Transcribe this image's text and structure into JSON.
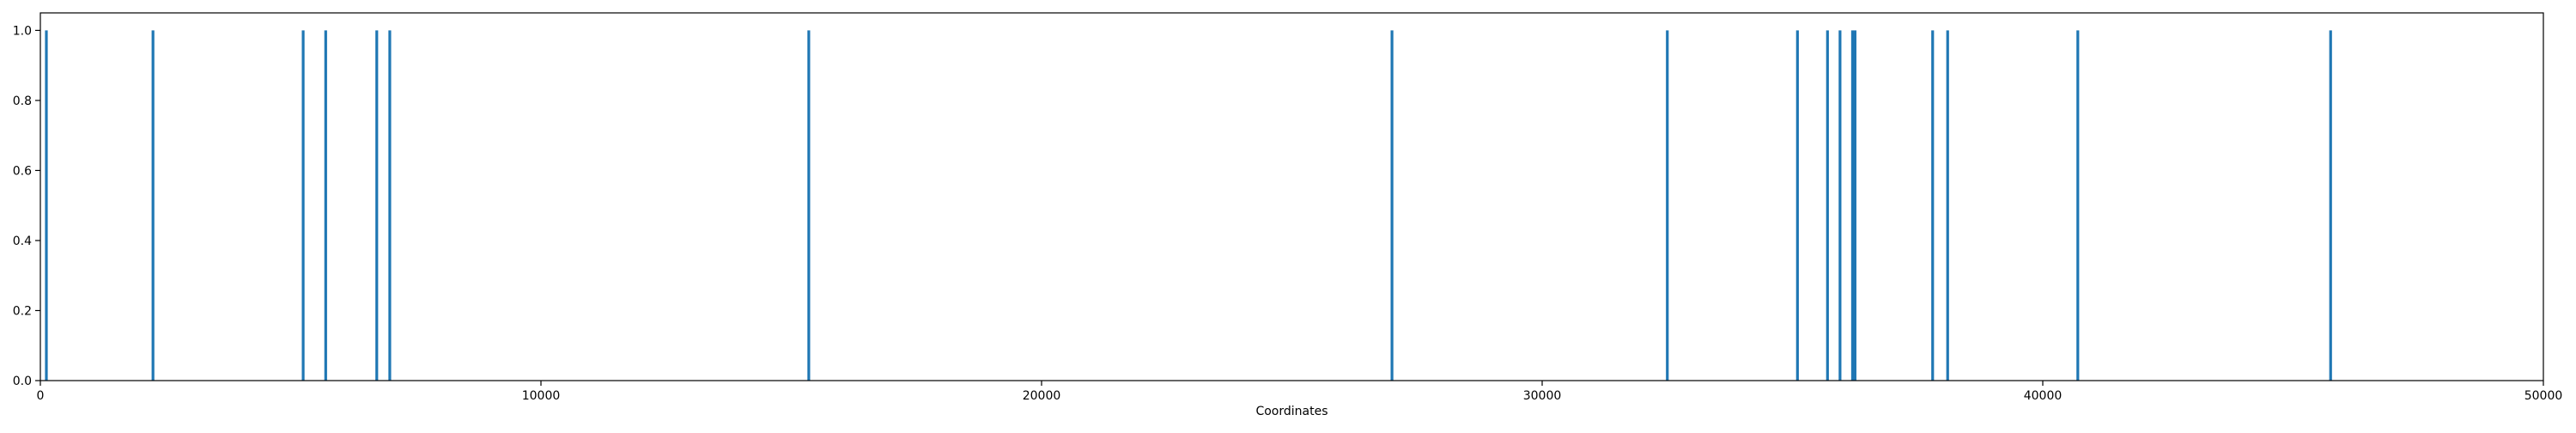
{
  "chart_data": {
    "type": "bar",
    "title": "",
    "xlabel": "Coordinates",
    "ylabel": "",
    "xlim": [
      0,
      50000
    ],
    "ylim": [
      0,
      1.05
    ],
    "x_ticks": [
      0,
      10000,
      20000,
      30000,
      40000,
      50000
    ],
    "x_tick_labels": [
      "0",
      "10000",
      "20000",
      "30000",
      "40000",
      "50000"
    ],
    "y_ticks": [
      0.0,
      0.2,
      0.4,
      0.6,
      0.8,
      1.0
    ],
    "y_tick_labels": [
      "0.0",
      "0.2",
      "0.4",
      "0.6",
      "0.8",
      "1.0"
    ],
    "grid": false,
    "legend": null,
    "color": "#1f77b4",
    "series": [
      {
        "x": [
          120,
          2250,
          5250,
          5700,
          6720,
          6980,
          15350,
          27000,
          32500,
          35100,
          35700,
          35950,
          36200,
          36250,
          37800,
          38100,
          40700,
          45750
        ],
        "values": [
          1,
          1,
          1,
          1,
          1,
          1,
          1,
          1,
          1,
          1,
          1,
          1,
          1,
          1,
          1,
          1,
          1,
          1
        ]
      }
    ]
  }
}
